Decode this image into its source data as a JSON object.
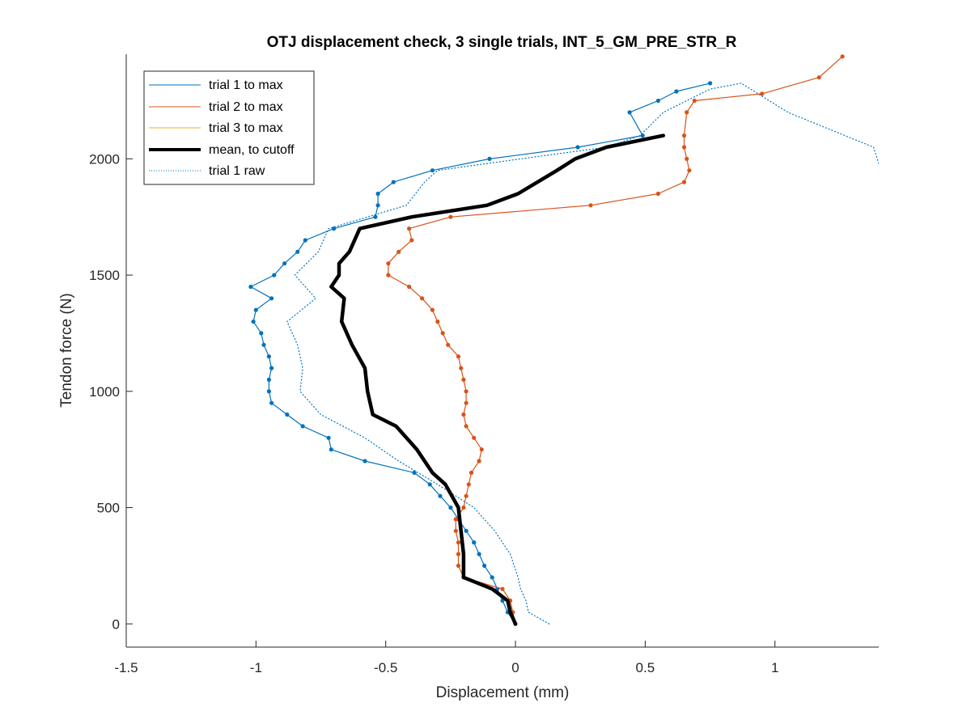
{
  "chart_data": {
    "type": "line",
    "title": "OTJ displacement check, 3 single trials, INT_5_GM_PRE_STR_R",
    "xlabel": "Displacement (mm)",
    "ylabel": "Tendon force (N)",
    "xlim": [
      -1.5,
      1.4
    ],
    "ylim": [
      -100,
      2450
    ],
    "xticks": [
      -1.5,
      -1,
      -0.5,
      0,
      0.5,
      1
    ],
    "xtick_labels": [
      "-1.5",
      "-1",
      "-0.5",
      "0",
      "0.5",
      "1"
    ],
    "yticks": [
      0,
      500,
      1000,
      1500,
      2000
    ],
    "ytick_labels": [
      "0",
      "500",
      "1000",
      "1500",
      "2000"
    ],
    "grid": false,
    "legend_position": "top-left",
    "legend": [
      "trial 1 to max",
      "trial 2 to max",
      "trial 3 to max",
      "mean, to cutoff",
      "trial 1 raw"
    ],
    "colors": {
      "trial1": "#0072BD",
      "trial2": "#D95319",
      "trial3": "#EDB120",
      "mean": "#000000",
      "axis": "#262626"
    },
    "series": [
      {
        "name": "trial 1 to max",
        "style": "solid-with-markers",
        "points": [
          [
            0,
            0
          ],
          [
            -0.03,
            50
          ],
          [
            -0.05,
            100
          ],
          [
            -0.07,
            150
          ],
          [
            -0.09,
            200
          ],
          [
            -0.12,
            250
          ],
          [
            -0.14,
            300
          ],
          [
            -0.16,
            350
          ],
          [
            -0.19,
            400
          ],
          [
            -0.22,
            450
          ],
          [
            -0.25,
            500
          ],
          [
            -0.29,
            550
          ],
          [
            -0.33,
            600
          ],
          [
            -0.39,
            650
          ],
          [
            -0.58,
            700
          ],
          [
            -0.71,
            750
          ],
          [
            -0.72,
            800
          ],
          [
            -0.82,
            850
          ],
          [
            -0.88,
            900
          ],
          [
            -0.94,
            950
          ],
          [
            -0.95,
            1000
          ],
          [
            -0.95,
            1050
          ],
          [
            -0.94,
            1100
          ],
          [
            -0.95,
            1150
          ],
          [
            -0.97,
            1200
          ],
          [
            -0.98,
            1250
          ],
          [
            -1.01,
            1300
          ],
          [
            -1.0,
            1350
          ],
          [
            -0.94,
            1400
          ],
          [
            -1.02,
            1450
          ],
          [
            -0.93,
            1500
          ],
          [
            -0.89,
            1550
          ],
          [
            -0.84,
            1600
          ],
          [
            -0.81,
            1650
          ],
          [
            -0.7,
            1700
          ],
          [
            -0.54,
            1750
          ],
          [
            -0.53,
            1800
          ],
          [
            -0.53,
            1850
          ],
          [
            -0.47,
            1900
          ],
          [
            -0.32,
            1950
          ],
          [
            -0.1,
            2000
          ],
          [
            0.24,
            2050
          ],
          [
            0.49,
            2100
          ],
          [
            0.44,
            2200
          ],
          [
            0.55,
            2250
          ],
          [
            0.62,
            2290
          ],
          [
            0.75,
            2325
          ]
        ]
      },
      {
        "name": "trial 2 to max",
        "style": "solid-with-markers",
        "points": [
          [
            0,
            0
          ],
          [
            -0.01,
            50
          ],
          [
            -0.02,
            100
          ],
          [
            -0.05,
            150
          ],
          [
            -0.2,
            200
          ],
          [
            -0.22,
            250
          ],
          [
            -0.22,
            300
          ],
          [
            -0.22,
            350
          ],
          [
            -0.23,
            400
          ],
          [
            -0.23,
            450
          ],
          [
            -0.2,
            500
          ],
          [
            -0.19,
            550
          ],
          [
            -0.18,
            600
          ],
          [
            -0.17,
            650
          ],
          [
            -0.14,
            700
          ],
          [
            -0.13,
            750
          ],
          [
            -0.16,
            800
          ],
          [
            -0.19,
            850
          ],
          [
            -0.2,
            900
          ],
          [
            -0.19,
            950
          ],
          [
            -0.19,
            1000
          ],
          [
            -0.2,
            1050
          ],
          [
            -0.21,
            1100
          ],
          [
            -0.22,
            1150
          ],
          [
            -0.26,
            1200
          ],
          [
            -0.28,
            1250
          ],
          [
            -0.3,
            1300
          ],
          [
            -0.32,
            1350
          ],
          [
            -0.36,
            1400
          ],
          [
            -0.41,
            1450
          ],
          [
            -0.49,
            1500
          ],
          [
            -0.49,
            1550
          ],
          [
            -0.45,
            1600
          ],
          [
            -0.4,
            1650
          ],
          [
            -0.41,
            1700
          ],
          [
            -0.25,
            1750
          ],
          [
            0.29,
            1800
          ],
          [
            0.55,
            1850
          ],
          [
            0.65,
            1900
          ],
          [
            0.67,
            1950
          ],
          [
            0.66,
            2000
          ],
          [
            0.65,
            2050
          ],
          [
            0.65,
            2100
          ],
          [
            0.66,
            2200
          ],
          [
            0.69,
            2250
          ],
          [
            0.95,
            2280
          ],
          [
            1.17,
            2350
          ],
          [
            1.26,
            2440
          ]
        ]
      },
      {
        "name": "trial 1 raw",
        "style": "dotted",
        "points": [
          [
            0.13,
            0
          ],
          [
            0.05,
            50
          ],
          [
            0.04,
            100
          ],
          [
            0.02,
            150
          ],
          [
            0.01,
            200
          ],
          [
            -0.02,
            300
          ],
          [
            -0.08,
            400
          ],
          [
            -0.16,
            500
          ],
          [
            -0.3,
            600
          ],
          [
            -0.45,
            700
          ],
          [
            -0.58,
            800
          ],
          [
            -0.75,
            900
          ],
          [
            -0.83,
            1000
          ],
          [
            -0.82,
            1100
          ],
          [
            -0.84,
            1200
          ],
          [
            -0.88,
            1300
          ],
          [
            -0.77,
            1400
          ],
          [
            -0.85,
            1500
          ],
          [
            -0.76,
            1600
          ],
          [
            -0.72,
            1700
          ],
          [
            -0.42,
            1800
          ],
          [
            -0.35,
            1900
          ],
          [
            -0.3,
            1950
          ],
          [
            0.02,
            2000
          ],
          [
            0.35,
            2050
          ],
          [
            0.48,
            2100
          ],
          [
            0.57,
            2200
          ],
          [
            0.75,
            2300
          ],
          [
            0.87,
            2325
          ],
          [
            1.05,
            2200
          ],
          [
            1.38,
            2050
          ],
          [
            1.4,
            1980
          ]
        ]
      },
      {
        "name": "mean, to cutoff",
        "style": "thick",
        "points": [
          [
            0,
            0
          ],
          [
            -0.02,
            50
          ],
          [
            -0.03,
            100
          ],
          [
            -0.09,
            150
          ],
          [
            -0.2,
            200
          ],
          [
            -0.2,
            300
          ],
          [
            -0.21,
            400
          ],
          [
            -0.22,
            500
          ],
          [
            -0.27,
            600
          ],
          [
            -0.32,
            650
          ],
          [
            -0.38,
            750
          ],
          [
            -0.46,
            850
          ],
          [
            -0.55,
            900
          ],
          [
            -0.57,
            1000
          ],
          [
            -0.58,
            1100
          ],
          [
            -0.63,
            1200
          ],
          [
            -0.67,
            1300
          ],
          [
            -0.66,
            1400
          ],
          [
            -0.71,
            1450
          ],
          [
            -0.68,
            1500
          ],
          [
            -0.68,
            1550
          ],
          [
            -0.64,
            1600
          ],
          [
            -0.6,
            1700
          ],
          [
            -0.4,
            1750
          ],
          [
            -0.11,
            1800
          ],
          [
            0.01,
            1850
          ],
          [
            0.16,
            1950
          ],
          [
            0.23,
            2000
          ],
          [
            0.35,
            2050
          ],
          [
            0.57,
            2100
          ]
        ]
      }
    ]
  }
}
